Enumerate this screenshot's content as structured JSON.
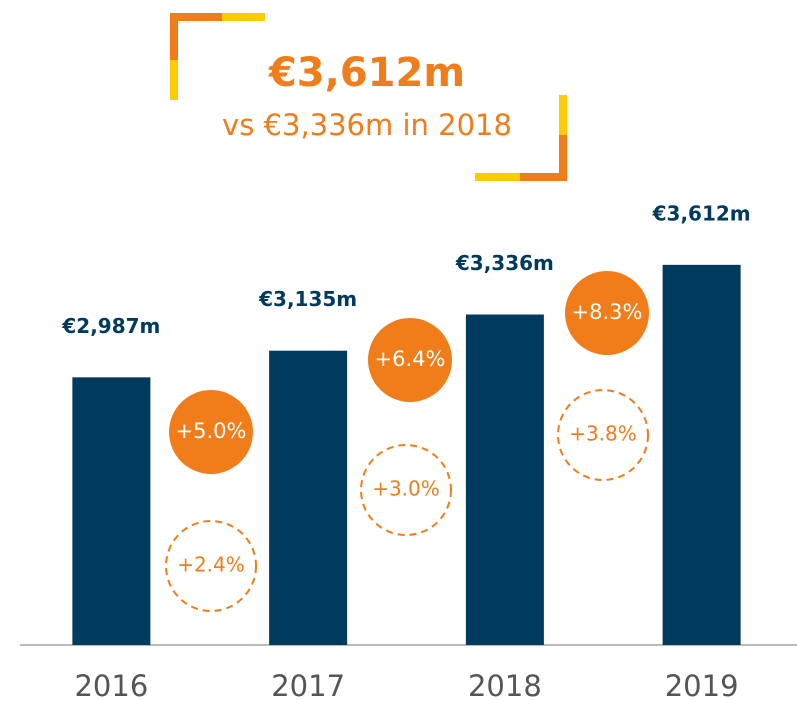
{
  "chart_data": {
    "type": "bar",
    "title": "€3,612m",
    "subtitle": "vs €3,336m in 2018",
    "categories": [
      "2016",
      "2017",
      "2018",
      "2019"
    ],
    "values": [
      2987,
      3135,
      3336,
      3612
    ],
    "value_labels": [
      "€2,987m",
      "€3,135m",
      "€3,336m",
      "€3,612m"
    ],
    "color": "#003a5c",
    "ylim": [
      1500,
      3700
    ],
    "growth": {
      "color": "#f07d1a",
      "values": [
        5.0,
        6.4,
        8.3
      ],
      "value_labels": [
        "+5.0%",
        "+6.4%",
        "+8.3%"
      ]
    },
    "organic_growth": {
      "color": "#f07d1a",
      "values": [
        2.4,
        3.0,
        3.8
      ],
      "value_labels": [
        "+2.4%",
        "+3.0%",
        "+3.8%"
      ]
    }
  }
}
